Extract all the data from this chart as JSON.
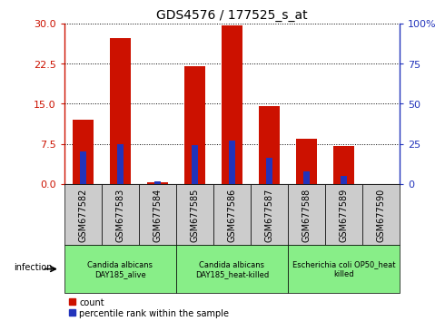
{
  "title": "GDS4576 / 177525_s_at",
  "samples": [
    "GSM677582",
    "GSM677583",
    "GSM677584",
    "GSM677585",
    "GSM677586",
    "GSM677587",
    "GSM677588",
    "GSM677589",
    "GSM677590"
  ],
  "counts": [
    12.0,
    27.2,
    0.3,
    22.0,
    29.6,
    14.5,
    8.5,
    7.0,
    0.0
  ],
  "percentile_ranks": [
    20,
    25,
    1.5,
    24,
    27,
    16,
    8,
    5,
    0
  ],
  "count_color": "#cc1100",
  "percentile_color": "#2233bb",
  "left_yticks": [
    0,
    7.5,
    15,
    22.5,
    30
  ],
  "right_yticks": [
    0,
    25,
    50,
    75,
    100
  ],
  "left_ylim": [
    0,
    30
  ],
  "right_ylim": [
    0,
    100
  ],
  "groups": [
    {
      "label": "Candida albicans\nDAY185_alive",
      "start": 0,
      "end": 3,
      "color": "#88ee88"
    },
    {
      "label": "Candida albicans\nDAY185_heat-killed",
      "start": 3,
      "end": 6,
      "color": "#88ee88"
    },
    {
      "label": "Escherichia coli OP50_heat\nkilled",
      "start": 6,
      "end": 9,
      "color": "#88ee88"
    }
  ],
  "infection_label": "infection",
  "bar_width": 0.55,
  "percentile_bar_width": 0.18,
  "bg_color": "#cccccc",
  "tick_label_fontsize": 7,
  "group_fontsize": 6
}
